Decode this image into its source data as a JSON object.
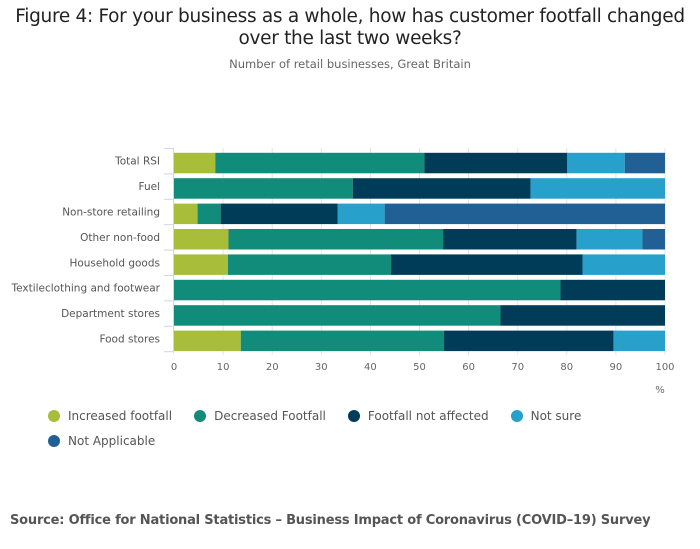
{
  "chart_data": {
    "type": "bar",
    "orientation": "horizontal",
    "stacked": true,
    "title": "Figure 4: For your business as a whole, how has customer footfall changed over the last two weeks?",
    "subtitle": "Number of retail businesses, Great Britain",
    "xlabel": "%",
    "ylabel": "",
    "xlim": [
      0,
      100
    ],
    "xticks": [
      "0",
      "10",
      "20",
      "30",
      "40",
      "50",
      "60",
      "70",
      "80",
      "90",
      "100"
    ],
    "grid": true,
    "legend_position": "bottom",
    "categories": [
      "Total RSI",
      "Fuel",
      "Non-store retailing",
      "Other non-food",
      "Household goods",
      "Textileclothing and footwear",
      "Department stores",
      "Food stores"
    ],
    "series": [
      {
        "name": "Increased footfall",
        "color": "#A8BD3A",
        "values": [
          8.4,
          0,
          4.8,
          11.1,
          11.0,
          0,
          0,
          13.6
        ]
      },
      {
        "name": "Decreased Footfall",
        "color": "#118C7B",
        "values": [
          42.6,
          36.4,
          4.7,
          43.7,
          33.2,
          78.7,
          66.5,
          41.4
        ]
      },
      {
        "name": "Footfall not affected",
        "color": "#003C57",
        "values": [
          29.1,
          36.2,
          23.8,
          27.2,
          39.0,
          21.3,
          33.5,
          34.5
        ]
      },
      {
        "name": "Not sure",
        "color": "#27A0CC",
        "values": [
          11.7,
          27.4,
          9.6,
          13.4,
          16.8,
          0,
          0,
          10.5
        ]
      },
      {
        "name": "Not Applicable",
        "color": "#206095",
        "values": [
          8.2,
          0,
          57.1,
          4.6,
          0,
          0,
          0,
          0
        ]
      }
    ]
  },
  "source": "Source: Office for National Statistics – Business Impact of Coronavirus (COVID–19) Survey"
}
